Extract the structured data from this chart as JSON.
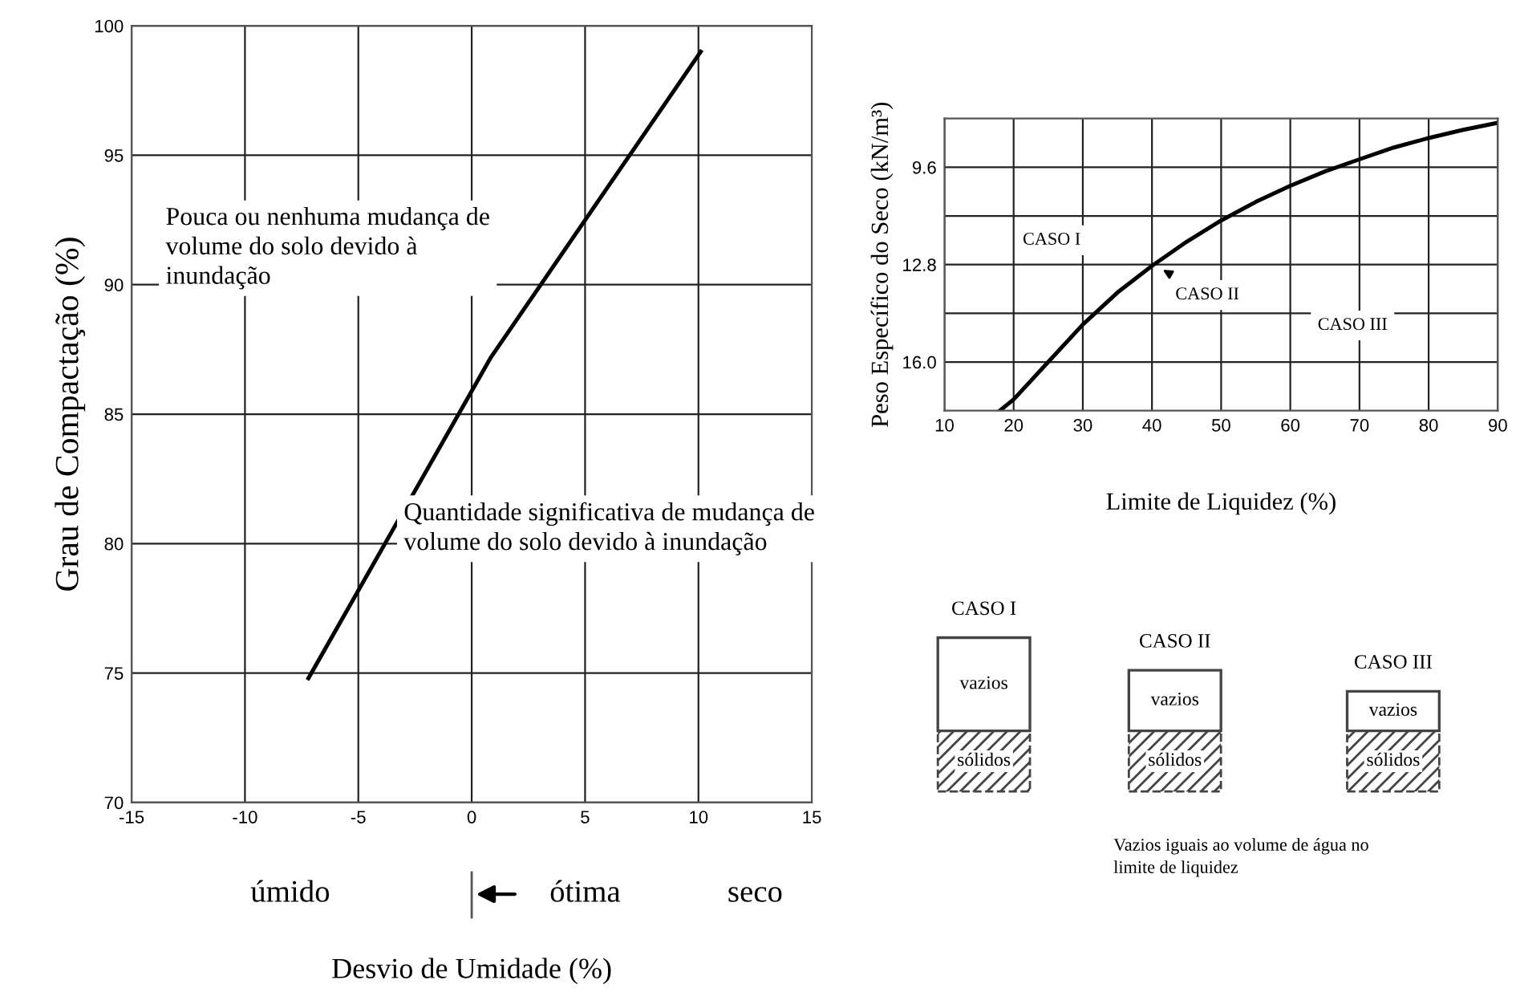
{
  "chart_data": [
    {
      "type": "line",
      "xlabel": "Desvio de Umidade (%)",
      "ylabel": "Grau de Compactação (%)",
      "x": [
        -7.2,
        0.85,
        10.1
      ],
      "series": [
        {
          "color": "#000000",
          "values": [
            74.8,
            87.2,
            99.0
          ]
        }
      ],
      "xlim": [
        -15,
        15
      ],
      "xticks": [
        -15,
        -10,
        -5,
        0,
        5,
        10,
        15
      ],
      "ylim": [
        70,
        100
      ],
      "yticks": [
        70,
        75,
        80,
        85,
        90,
        95,
        100
      ],
      "grid": true,
      "annotations": [
        "Pouca ou nenhuma mudança de volume do solo devido à inundação",
        "Quantidade significativa de mudança de volume do solo devido à inundação",
        "úmido",
        "ótima",
        "seco"
      ]
    },
    {
      "type": "line",
      "xlabel": "Limite de Liquidez (%)",
      "ylabel": "Peso Específico do Seco (kN/m³)",
      "x": [
        18,
        20,
        25,
        30,
        35,
        40,
        45,
        50,
        55,
        60,
        65,
        70,
        75,
        80,
        85,
        90
      ],
      "series": [
        {
          "color": "#000000",
          "values": [
            17.6,
            17.23,
            16.0,
            14.77,
            13.72,
            12.84,
            12.05,
            11.35,
            10.74,
            10.21,
            9.74,
            9.34,
            8.95,
            8.64,
            8.37,
            8.14
          ]
        }
      ],
      "xlim": [
        10,
        90
      ],
      "xticks": [
        10,
        20,
        30,
        40,
        50,
        60,
        70,
        80,
        90
      ],
      "ylim": [
        17.6,
        8.0
      ],
      "yticks": [
        9.6,
        {
          "value": 11.2,
          "label": null
        },
        12.8,
        {
          "value": 14.4,
          "label": null
        },
        {
          "value": 16.0,
          "label": "16.0"
        }
      ],
      "grid": true,
      "annotations": [
        "CASO I",
        "CASO II",
        "CASO III"
      ]
    },
    {
      "type": "other",
      "annotations": [
        "CASO I",
        "vazios",
        "sólidos",
        "CASO II",
        "vazios",
        "sólidos",
        "CASO III",
        "vazios",
        "sólidos",
        "Vazios iguais ao volume de água no limite de liquidez"
      ]
    }
  ]
}
